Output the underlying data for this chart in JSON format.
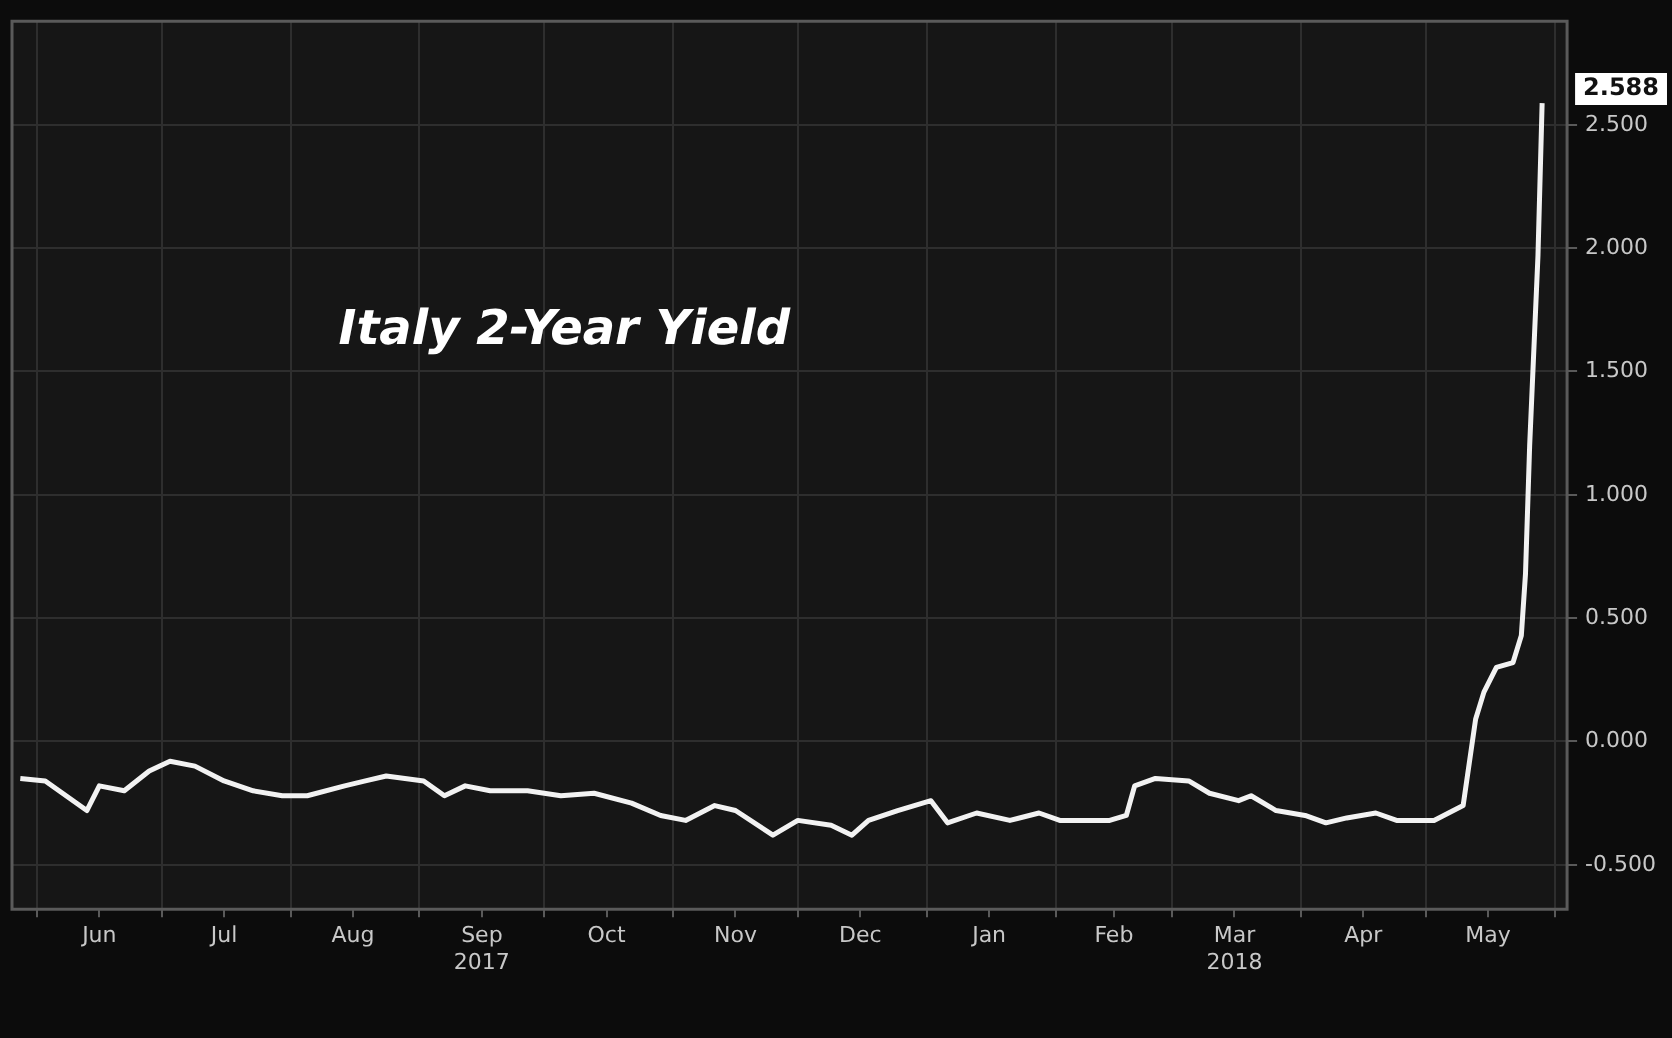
{
  "chart_data": {
    "type": "line",
    "title": "Italy 2-Year Yield",
    "x": [
      "2017-05-28",
      "2017-06-03",
      "2017-06-08",
      "2017-06-13",
      "2017-06-16",
      "2017-06-22",
      "2017-06-28",
      "2017-07-03",
      "2017-07-09",
      "2017-07-16",
      "2017-07-23",
      "2017-07-30",
      "2017-08-05",
      "2017-08-14",
      "2017-08-19",
      "2017-08-24",
      "2017-09-02",
      "2017-09-07",
      "2017-09-12",
      "2017-09-18",
      "2017-09-27",
      "2017-10-05",
      "2017-10-13",
      "2017-10-22",
      "2017-10-29",
      "2017-11-04",
      "2017-11-11",
      "2017-11-16",
      "2017-11-25",
      "2017-12-01",
      "2017-12-09",
      "2017-12-14",
      "2017-12-18",
      "2017-12-25",
      "2018-01-02",
      "2018-01-06",
      "2018-01-13",
      "2018-01-21",
      "2018-01-28",
      "2018-02-02",
      "2018-02-14",
      "2018-02-18",
      "2018-02-20",
      "2018-02-25",
      "2018-03-05",
      "2018-03-10",
      "2018-03-17",
      "2018-03-20",
      "2018-03-26",
      "2018-04-02",
      "2018-04-07",
      "2018-04-12",
      "2018-04-19",
      "2018-04-24",
      "2018-04-30",
      "2018-05-03",
      "2018-05-10",
      "2018-05-13",
      "2018-05-15",
      "2018-05-18",
      "2018-05-22",
      "2018-05-24",
      "2018-05-25",
      "2018-05-26",
      "2018-05-28",
      "2018-05-29"
    ],
    "series": [
      {
        "color": "#f2f2f2",
        "values": [
          -0.15,
          -0.16,
          -0.22,
          -0.28,
          -0.18,
          -0.2,
          -0.12,
          -0.08,
          -0.1,
          -0.16,
          -0.2,
          -0.22,
          -0.22,
          -0.18,
          -0.16,
          -0.14,
          -0.16,
          -0.22,
          -0.18,
          -0.2,
          -0.2,
          -0.22,
          -0.21,
          -0.25,
          -0.3,
          -0.32,
          -0.26,
          -0.28,
          -0.38,
          -0.32,
          -0.34,
          -0.38,
          -0.32,
          -0.28,
          -0.24,
          -0.33,
          -0.29,
          -0.32,
          -0.29,
          -0.32,
          -0.32,
          -0.3,
          -0.18,
          -0.15,
          -0.16,
          -0.21,
          -0.24,
          -0.22,
          -0.28,
          -0.3,
          -0.33,
          -0.31,
          -0.29,
          -0.32,
          -0.32,
          -0.32,
          -0.26,
          0.09,
          0.2,
          0.3,
          0.32,
          0.43,
          0.68,
          1.2,
          1.97,
          2.588
        ],
        "value_labels": [
          null,
          null,
          null,
          null,
          null,
          null,
          null,
          null,
          null,
          null,
          null,
          null,
          null,
          null,
          null,
          null,
          null,
          null,
          null,
          null,
          null,
          null,
          null,
          null,
          null,
          null,
          null,
          null,
          null,
          null,
          null,
          null,
          null,
          null,
          null,
          null,
          null,
          null,
          null,
          null,
          null,
          null,
          null,
          null,
          null,
          null,
          null,
          null,
          null,
          null,
          null,
          null,
          null,
          null,
          null,
          null,
          null,
          null,
          null,
          null,
          null,
          null,
          null,
          null,
          null,
          "2.588"
        ]
      }
    ],
    "xlim": [
      "2017-05-26",
      "2018-06-04"
    ],
    "xticks": [
      {
        "value": "2017-06-01",
        "label": null
      },
      {
        "value": "2017-06-16",
        "label": "Jun"
      },
      {
        "value": "2017-07-01",
        "label": null
      },
      {
        "value": "2017-07-16",
        "label": "Jul"
      },
      {
        "value": "2017-08-01",
        "label": null
      },
      {
        "value": "2017-08-16",
        "label": "Aug"
      },
      {
        "value": "2017-09-01",
        "label": null
      },
      {
        "value": "2017-09-16",
        "label": "Sep\n2017"
      },
      {
        "value": "2017-10-01",
        "label": null
      },
      {
        "value": "2017-10-16",
        "label": "Oct"
      },
      {
        "value": "2017-11-01",
        "label": null
      },
      {
        "value": "2017-11-16",
        "label": "Nov"
      },
      {
        "value": "2017-12-01",
        "label": null
      },
      {
        "value": "2017-12-16",
        "label": "Dec"
      },
      {
        "value": "2018-01-01",
        "label": null
      },
      {
        "value": "2018-01-16",
        "label": "Jan"
      },
      {
        "value": "2018-02-01",
        "label": null
      },
      {
        "value": "2018-02-15",
        "label": "Feb"
      },
      {
        "value": "2018-03-01",
        "label": null
      },
      {
        "value": "2018-03-16",
        "label": "Mar\n2018"
      },
      {
        "value": "2018-04-01",
        "label": null
      },
      {
        "value": "2018-04-16",
        "label": "Apr"
      },
      {
        "value": "2018-05-01",
        "label": null
      },
      {
        "value": "2018-05-16",
        "label": "May"
      },
      {
        "value": "2018-06-01",
        "label": null
      }
    ],
    "ylim": [
      -0.68,
      2.92
    ],
    "yticks": [
      {
        "value": -0.5,
        "label": "-0.500"
      },
      {
        "value": 0,
        "label": "0.000"
      },
      {
        "value": 0.5,
        "label": "0.500"
      },
      {
        "value": 1,
        "label": "1.000"
      },
      {
        "value": 1.5,
        "label": "1.500"
      },
      {
        "value": 2,
        "label": "2.000"
      },
      {
        "value": 2.5,
        "label": "2.500"
      }
    ],
    "grid": true,
    "legend": false,
    "marker": "none",
    "line_style": "solid"
  }
}
